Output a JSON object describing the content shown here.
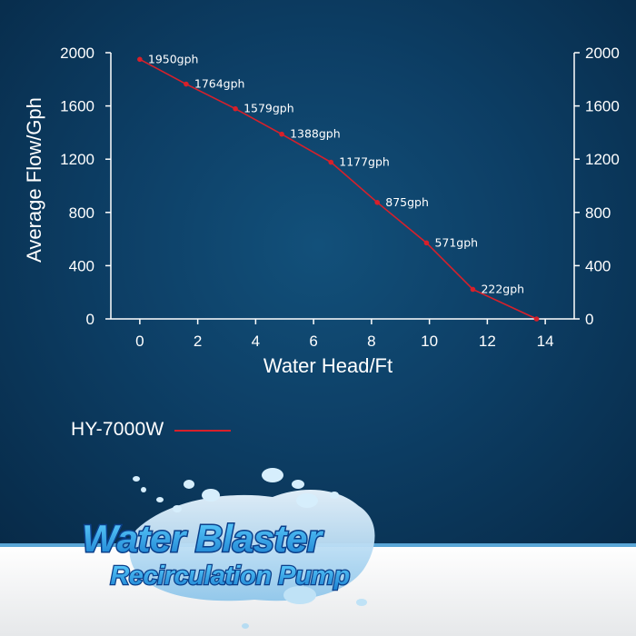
{
  "chart_data": {
    "type": "line",
    "xlabel": "Water Head/Ft",
    "ylabel": "Average Flow/Gph",
    "xlim": [
      -1,
      15
    ],
    "ylim": [
      0,
      2000
    ],
    "x_ticks": [
      0,
      2,
      4,
      6,
      8,
      10,
      12,
      14
    ],
    "y_ticks": [
      0,
      400,
      800,
      1200,
      1600,
      2000
    ],
    "grid": false,
    "legend_position": "bottom-left",
    "series": [
      {
        "name": "HY-7000W",
        "color": "#d8202a",
        "x": [
          0,
          1.6,
          3.3,
          4.9,
          6.6,
          8.2,
          9.9,
          11.5,
          13.7
        ],
        "y": [
          1950,
          1764,
          1579,
          1388,
          1177,
          875,
          571,
          222,
          0
        ],
        "labels": [
          "1950gph",
          "1764gph",
          "1579gph",
          "1388gph",
          "1177gph",
          "875gph",
          "571gph",
          "222gph",
          ""
        ]
      }
    ]
  },
  "legend": {
    "label": "HY-7000W"
  },
  "logo": {
    "line1": "Water Blaster",
    "line2": "Recirculation Pump"
  }
}
